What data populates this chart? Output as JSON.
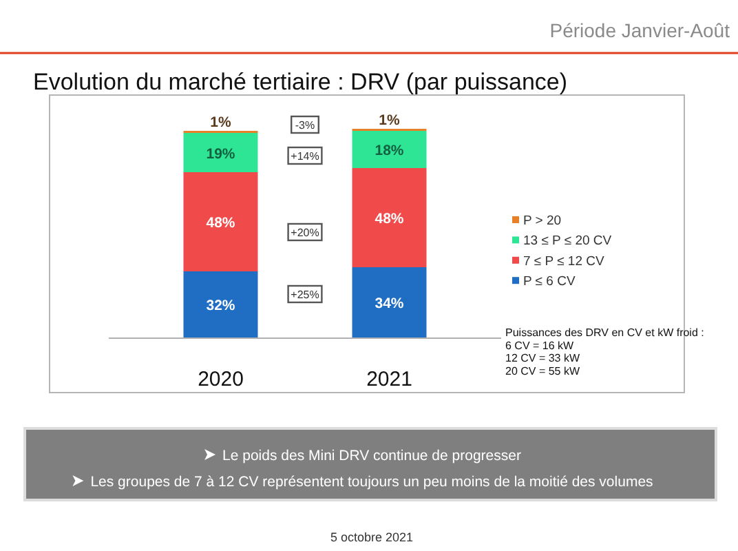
{
  "chart_data": {
    "type": "bar",
    "stacked": true,
    "title": "Evolution du marché tertiaire : DRV (par puissance)",
    "subtitle": "Période Janvier-Août",
    "categories": [
      "2020",
      "2021"
    ],
    "series": [
      {
        "name": "P ≤ 6 CV",
        "color": "#1f6ec4",
        "values": [
          32,
          34
        ],
        "value_labels": [
          "32%",
          "34%"
        ]
      },
      {
        "name": "7 ≤ P ≤ 12 CV",
        "color": "#f04a4a",
        "values": [
          48,
          48
        ],
        "value_labels": [
          "48%",
          "48%"
        ]
      },
      {
        "name": "13 ≤ P ≤ 20 CV",
        "color": "#2ee596",
        "values": [
          19,
          18
        ],
        "value_labels": [
          "19%",
          "18%"
        ]
      },
      {
        "name": "P > 20",
        "color": "#e8802a",
        "values": [
          1,
          1
        ],
        "value_labels": [
          "1%",
          "1%"
        ]
      }
    ],
    "ylim": [
      0,
      105
    ],
    "tick_labels": "x",
    "legend": "right",
    "annotations": [
      {
        "text": "-3%",
        "y": 103
      },
      {
        "text": "+14%",
        "y": 88
      },
      {
        "text": "+20%",
        "y": 51
      },
      {
        "text": "+25%",
        "y": 21
      },
      "Puissances des DRV en CV et kW froid :\n6 CV = 16 kW\n12 CV = 33 kW\n20 CV = 55 kW",
      "Le poids des Mini DRV continue de progresser",
      "Les groupes de 7 à 12 CV représentent toujours un peu moins de la moitié des volumes",
      "5 octobre 2021"
    ]
  }
}
